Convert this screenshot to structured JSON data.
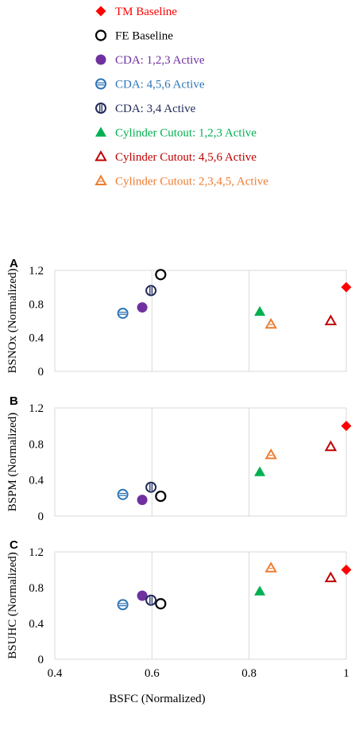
{
  "legend": {
    "placement": "top",
    "entries": [
      {
        "key": "tm",
        "label": "TM Baseline",
        "color": "#ff0000",
        "marker": "diamond"
      },
      {
        "key": "fe",
        "label": "FE Baseline",
        "color": "#000000",
        "marker": "circle-open"
      },
      {
        "key": "cda123",
        "label": "CDA: 1,2,3 Active",
        "color": "#7030a0",
        "marker": "circle-filled"
      },
      {
        "key": "cda456",
        "label": "CDA: 4,5,6 Active",
        "color": "#2e75b6",
        "marker": "circle-hbar"
      },
      {
        "key": "cda34",
        "label": "CDA:  3,4 Active",
        "color": "#1f2a5a",
        "marker": "circle-vbar"
      },
      {
        "key": "cc123",
        "label": "Cylinder Cutout:  1,2,3 Active",
        "color": "#00b050",
        "marker": "triangle-filled"
      },
      {
        "key": "cc456",
        "label": "Cylinder Cutout:  4,5,6 Active",
        "color": "#c00000",
        "marker": "triangle-open"
      },
      {
        "key": "cc2345",
        "label": "Cylinder Cutout:  2,3,4,5, Active",
        "color": "#ed7d31",
        "marker": "triangle-hbar"
      }
    ]
  },
  "chart_data": [
    {
      "type": "scatter",
      "panel_label": "A",
      "ylabel": "BSNOx (Normalized)",
      "xlim": [
        0.4,
        1.0
      ],
      "ylim": [
        0,
        1.2
      ],
      "yticks": [
        "0",
        "0.4",
        "0.8",
        "1.2"
      ],
      "grid": "vertical",
      "series": [
        {
          "key": "tm",
          "x": 1.0,
          "y": 1.0
        },
        {
          "key": "fe",
          "x": 0.618,
          "y": 1.15
        },
        {
          "key": "cda123",
          "x": 0.58,
          "y": 0.76
        },
        {
          "key": "cda456",
          "x": 0.54,
          "y": 0.69
        },
        {
          "key": "cda34",
          "x": 0.598,
          "y": 0.96
        },
        {
          "key": "cc123",
          "x": 0.822,
          "y": 0.71
        },
        {
          "key": "cc456",
          "x": 0.968,
          "y": 0.6
        },
        {
          "key": "cc2345",
          "x": 0.845,
          "y": 0.56
        }
      ]
    },
    {
      "type": "scatter",
      "panel_label": "B",
      "ylabel": "BSPM (Normalized)",
      "xlim": [
        0.4,
        1.0
      ],
      "ylim": [
        0,
        1.2
      ],
      "yticks": [
        "0",
        "0.4",
        "0.8",
        "1.2"
      ],
      "grid": "vertical",
      "series": [
        {
          "key": "tm",
          "x": 1.0,
          "y": 1.0
        },
        {
          "key": "fe",
          "x": 0.618,
          "y": 0.22
        },
        {
          "key": "cda123",
          "x": 0.58,
          "y": 0.18
        },
        {
          "key": "cda456",
          "x": 0.54,
          "y": 0.24
        },
        {
          "key": "cda34",
          "x": 0.598,
          "y": 0.32
        },
        {
          "key": "cc123",
          "x": 0.822,
          "y": 0.49
        },
        {
          "key": "cc456",
          "x": 0.968,
          "y": 0.77
        },
        {
          "key": "cc2345",
          "x": 0.845,
          "y": 0.68
        }
      ]
    },
    {
      "type": "scatter",
      "panel_label": "C",
      "ylabel": "BSUHC (Normalized)",
      "xlabel": "BSFC (Normalized)",
      "xlim": [
        0.4,
        1.0
      ],
      "ylim": [
        0,
        1.2
      ],
      "yticks": [
        "0",
        "0.4",
        "0.8",
        "1.2"
      ],
      "xticks": [
        "0.4",
        "0.6",
        "0.8",
        "1"
      ],
      "grid": "vertical",
      "series": [
        {
          "key": "tm",
          "x": 1.0,
          "y": 1.0
        },
        {
          "key": "fe",
          "x": 0.618,
          "y": 0.62
        },
        {
          "key": "cda123",
          "x": 0.58,
          "y": 0.71
        },
        {
          "key": "cda456",
          "x": 0.54,
          "y": 0.61
        },
        {
          "key": "cda34",
          "x": 0.598,
          "y": 0.66
        },
        {
          "key": "cc123",
          "x": 0.822,
          "y": 0.76
        },
        {
          "key": "cc456",
          "x": 0.968,
          "y": 0.91
        },
        {
          "key": "cc2345",
          "x": 0.845,
          "y": 1.02
        }
      ]
    }
  ]
}
